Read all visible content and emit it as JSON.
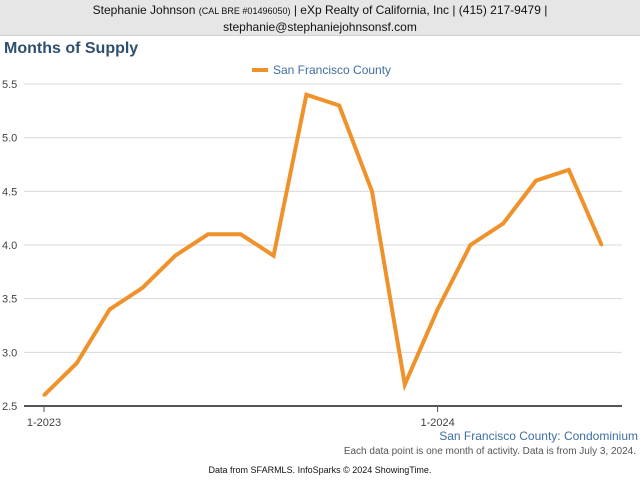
{
  "header": {
    "name": "Stephanie Johnson",
    "license": "(CAL BRE #01496050)",
    "company_phone": "| eXp Realty of California, Inc | (415) 217-9479 |",
    "email": "stephanie@stephaniejohnsonsf.com"
  },
  "footer": {
    "series_label": "San Francisco County: Condominium",
    "note": "Each data point is one month of activity. Data is from July 3, 2024.",
    "credit": "Data from SFARMLS. InfoSparks © 2024 ShowingTime."
  },
  "chart_data": {
    "type": "line",
    "title": "Months of Supply",
    "legend_position": "top-center",
    "series": [
      {
        "name": "San Francisco County",
        "color": "#f0922b",
        "values": [
          2.6,
          2.9,
          3.4,
          3.6,
          3.9,
          4.1,
          4.1,
          3.9,
          5.4,
          5.3,
          4.5,
          2.7,
          3.4,
          4.0,
          4.2,
          4.6,
          4.7,
          4.0
        ]
      }
    ],
    "x_count": 18,
    "x_ticks": [
      {
        "index": 0,
        "label": "1-2023"
      },
      {
        "index": 12,
        "label": "1-2024"
      }
    ],
    "y_ticks": [
      "2.5",
      "3.0",
      "3.5",
      "4.0",
      "4.5",
      "5.0",
      "5.5"
    ],
    "ylim": [
      2.5,
      5.5
    ],
    "grid": true
  }
}
